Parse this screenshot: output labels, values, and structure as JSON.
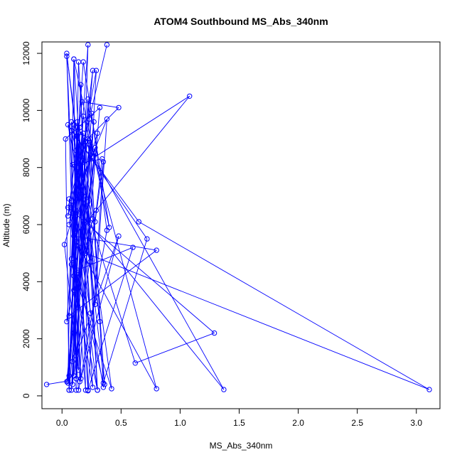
{
  "chart_data": {
    "type": "line",
    "title": "ATOM4 Southbound MS_Abs_340nm",
    "xlabel": "MS_Abs_340nm",
    "ylabel": "Altitude (m)",
    "xlim": [
      -0.17,
      3.2
    ],
    "ylim": [
      -450,
      12400
    ],
    "xticks": [
      0.0,
      0.5,
      1.0,
      1.5,
      2.0,
      2.5,
      3.0
    ],
    "xtick_labels": [
      "0.0",
      "0.5",
      "1.0",
      "1.5",
      "2.0",
      "2.5",
      "3.0"
    ],
    "yticks": [
      0,
      2000,
      4000,
      6000,
      8000,
      10000,
      12000
    ],
    "ytick_labels": [
      "0",
      "2000",
      "4000",
      "6000",
      "8000",
      "10000",
      "12000"
    ],
    "grid": false,
    "legend": "none",
    "series": [
      {
        "color": "#0000ff",
        "marker": "open-circle",
        "x": [
          -0.13,
          0.05,
          0.1,
          0.12,
          0.08,
          0.22,
          0.35,
          0.1,
          0.15,
          0.06,
          0.03,
          0.32,
          0.12,
          0.18,
          0.08,
          0.22,
          0.28,
          0.1,
          0.14,
          0.38,
          0.25,
          0.12,
          0.48,
          0.16,
          0.04,
          0.1,
          0.3,
          0.14,
          0.09,
          0.22,
          0.35,
          0.15,
          0.27,
          0.06,
          0.13,
          0.42,
          0.08,
          0.2,
          0.3,
          0.11,
          0.26,
          0.05,
          0.18,
          0.8,
          0.12,
          0.24,
          0.09,
          0.16,
          0.05,
          0.72,
          0.35,
          0.1,
          0.13,
          1.37,
          0.1,
          0.28,
          0.04,
          0.13,
          0.6,
          0.22,
          0.16,
          0.06,
          0.8,
          0.1,
          0.29,
          1.08,
          0.14,
          0.04,
          0.26,
          0.08,
          0.65,
          3.11,
          0.2,
          0.12,
          0.28,
          0.38,
          0.15,
          0.2,
          0.06,
          0.24,
          0.34,
          0.09,
          0.62,
          1.29,
          0.05,
          0.2,
          0.12,
          0.3,
          0.02,
          0.14,
          0.09,
          0.18,
          0.4,
          0.1,
          0.24,
          0.13,
          0.05,
          0.17,
          0.48,
          0.12,
          0.36,
          0.22,
          0.06,
          0.29,
          0.15,
          0.1,
          0.26,
          0.08,
          0.13,
          0.32,
          0.04,
          0.18,
          0.22,
          0.11,
          0.24,
          0.06,
          0.14,
          0.28,
          0.1,
          0.16,
          0.23,
          0.38
        ],
        "y": [
          400,
          520,
          11800,
          200,
          9600,
          180,
          8200,
          700,
          9400,
          200,
          9000,
          10100,
          600,
          9200,
          200,
          6800,
          8500,
          2200,
          200,
          5800,
          9900,
          1400,
          5600,
          600,
          11900,
          4200,
          200,
          11700,
          400,
          10400,
          300,
          5200,
          9600,
          200,
          9100,
          250,
          4600,
          8900,
          200,
          6200,
          11400,
          450,
          9800,
          250,
          5400,
          9000,
          1200,
          7200,
          9500,
          5500,
          450,
          4800,
          9400,
          220,
          6700,
          8700,
          500,
          4400,
          5200,
          200,
          10900,
          2800,
          5100,
          5600,
          6500,
          10500,
          8000,
          2600,
          6200,
          9300,
          6100,
          220,
          5000,
          9100,
          3200,
          9700,
          7300,
          200,
          6900,
          4700,
          8300,
          8100,
          1150,
          2200,
          6600,
          8900,
          600,
          9200,
          5300,
          900,
          6400,
          11700,
          5900,
          11800,
          2900,
          7700,
          6300,
          10300,
          10100,
          8600,
          400,
          9000,
          6000,
          11400,
          500,
          9500,
          300,
          4800,
          9600,
          2600,
          12000,
          7000,
          12300,
          5700,
          8800,
          700,
          9200,
          6100,
          3700,
          8400,
          9700,
          12300
        ]
      }
    ]
  }
}
